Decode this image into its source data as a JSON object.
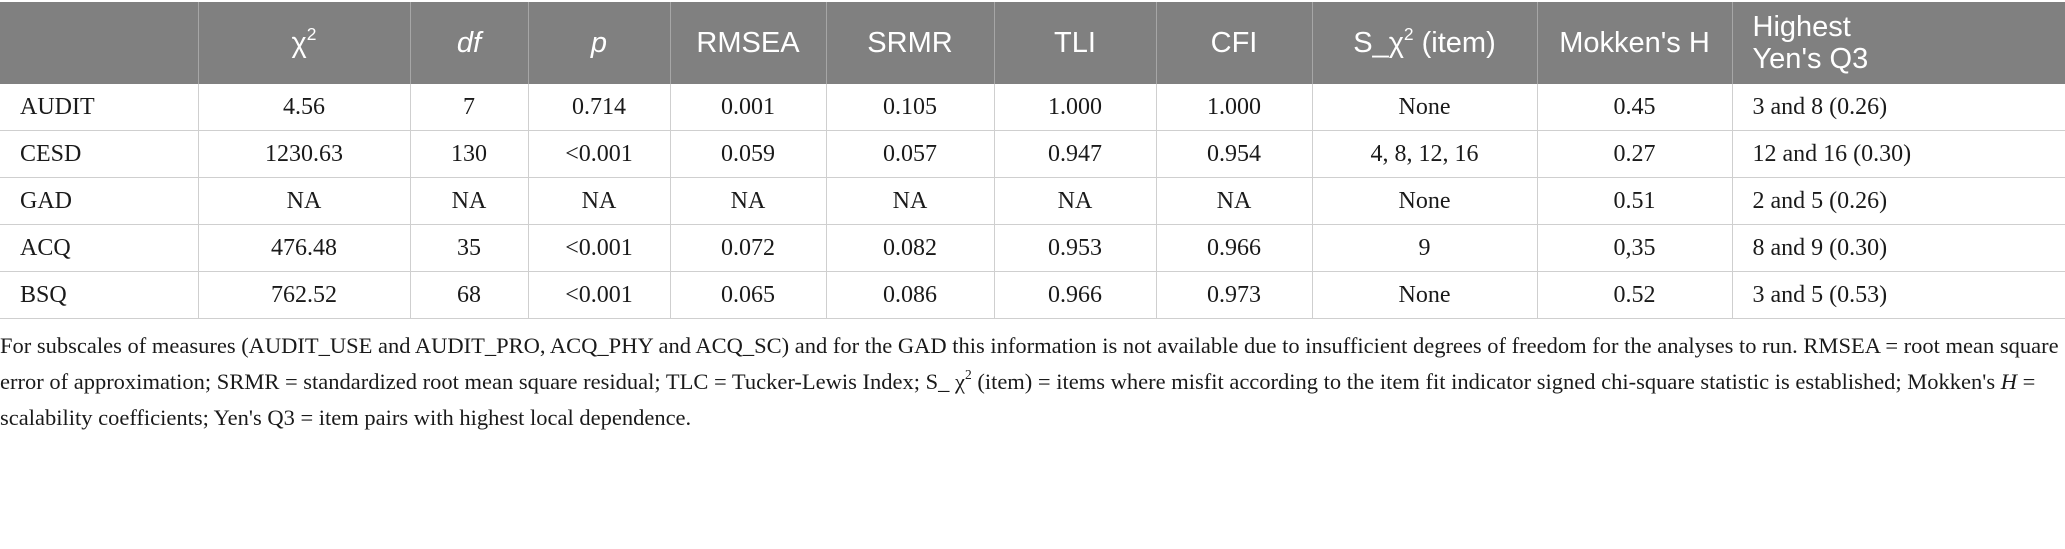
{
  "table": {
    "headers": [
      "",
      "χ²",
      "df",
      "p",
      "RMSEA",
      "SRMR",
      "TLI",
      "CFI",
      "S_χ² (item)",
      "Mokken's H",
      "Highest Yen's Q3"
    ],
    "header_chi": "χ",
    "header_chi_sup": "2",
    "header_df": "df",
    "header_p": "p",
    "header_rmsea": "RMSEA",
    "header_srmr": "SRMR",
    "header_tli": "TLI",
    "header_cfi": "CFI",
    "header_s_prefix": "S_χ",
    "header_s_sup": "2",
    "header_s_suffix": " (item)",
    "header_mokken": "Mokken's H",
    "header_yen_line1": "Highest",
    "header_yen_line2": "Yen's Q3",
    "rows": [
      [
        "AUDIT",
        "4.56",
        "7",
        "0.714",
        "0.001",
        "0.105",
        "1.000",
        "1.000",
        "None",
        "0.45",
        "3 and 8 (0.26)"
      ],
      [
        "CESD",
        "1230.63",
        "130",
        "<0.001",
        "0.059",
        "0.057",
        "0.947",
        "0.954",
        "4, 8, 12, 16",
        "0.27",
        "12 and 16 (0.30)"
      ],
      [
        "GAD",
        "NA",
        "NA",
        "NA",
        "NA",
        "NA",
        "NA",
        "NA",
        "None",
        "0.51",
        "2 and 5 (0.26)"
      ],
      [
        "ACQ",
        "476.48",
        "35",
        "<0.001",
        "0.072",
        "0.082",
        "0.953",
        "0.966",
        "9",
        "0,35",
        "8 and 9 (0.30)"
      ],
      [
        "BSQ",
        "762.52",
        "68",
        "<0.001",
        "0.065",
        "0.086",
        "0.966",
        "0.973",
        "None",
        "0.52",
        "3 and 5 (0.53)"
      ]
    ]
  },
  "footnote": {
    "part1": "For subscales of measures (AUDIT_USE and AUDIT_PRO, ACQ_PHY and ACQ_SC) and for the GAD this information is not available due to insufficient degrees of freedom for the analyses to run. RMSEA = root mean square error of approximation; SRMR = standardized root mean square residual; TLC = Tucker-Lewis Index; S_ χ",
    "sup": "2",
    "part2": " (item) = items where misfit according to the item fit indicator signed chi-square statistic is established; Mokken's ",
    "italic_h": "H",
    "part3": " = scalability coefficients; Yen's Q3 = item pairs with highest local dependence."
  }
}
